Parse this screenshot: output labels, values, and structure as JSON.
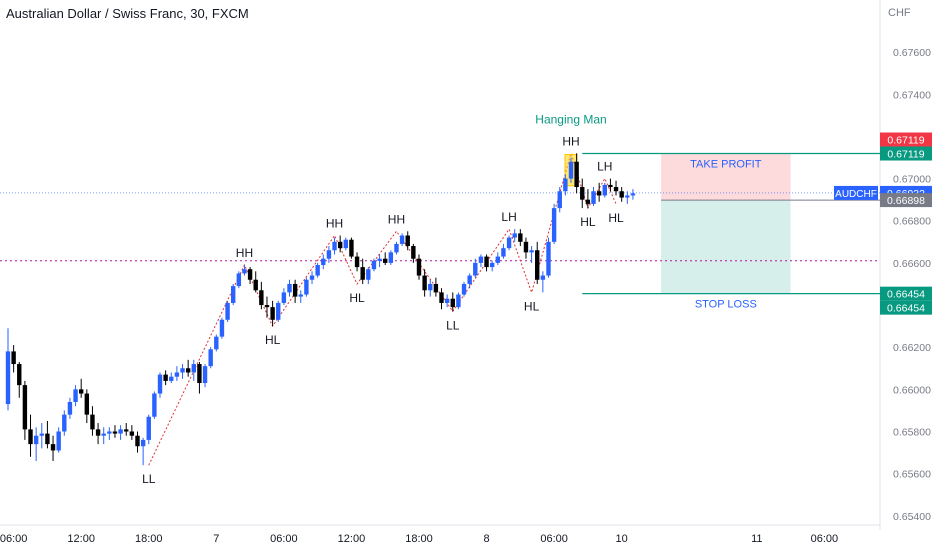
{
  "header": {
    "title": "Australian Dollar / Swiss Franc, 30, FXCM"
  },
  "chart_data": {
    "type": "candlestick",
    "currency_label": "CHF",
    "y_range": [
      0.6538,
      0.678
    ],
    "y_ticks": [
      "0.67600",
      "0.67400",
      "0.67000",
      "0.66800",
      "0.66600",
      "0.66200",
      "0.66000",
      "0.65800",
      "0.65600",
      "0.65400"
    ],
    "x_range_bars": [
      0,
      139
    ],
    "x_ticks": [
      {
        "bar": 1,
        "label": "06:00"
      },
      {
        "bar": 13,
        "label": "12:00"
      },
      {
        "bar": 25,
        "label": "18:00"
      },
      {
        "bar": 37,
        "label": "7"
      },
      {
        "bar": 49,
        "label": "06:00"
      },
      {
        "bar": 61,
        "label": "12:00"
      },
      {
        "bar": 73,
        "label": "18:00"
      },
      {
        "bar": 85,
        "label": "8"
      },
      {
        "bar": 97,
        "label": "06:00"
      },
      {
        "bar": 109,
        "label": "10"
      },
      {
        "bar": 133,
        "label": "11"
      },
      {
        "bar": 145,
        "label": "06:00"
      }
    ],
    "colors": {
      "up": "#2962ff",
      "down": "#000000",
      "swing": "#e03131",
      "annot_green": "#089981"
    },
    "ohlc": [
      [
        0.6593,
        0.6629,
        0.659,
        0.6618
      ],
      [
        0.6618,
        0.6621,
        0.6608,
        0.6612
      ],
      [
        0.6612,
        0.6613,
        0.6596,
        0.6602
      ],
      [
        0.6602,
        0.6604,
        0.6576,
        0.6581
      ],
      [
        0.6581,
        0.6588,
        0.6568,
        0.6574
      ],
      [
        0.6574,
        0.6582,
        0.6566,
        0.6578
      ],
      [
        0.6578,
        0.6584,
        0.6572,
        0.6579
      ],
      [
        0.6579,
        0.6585,
        0.6572,
        0.6574
      ],
      [
        0.6574,
        0.6578,
        0.6566,
        0.6571
      ],
      [
        0.6571,
        0.6582,
        0.657,
        0.658
      ],
      [
        0.658,
        0.659,
        0.6578,
        0.6588
      ],
      [
        0.6588,
        0.6596,
        0.6586,
        0.6594
      ],
      [
        0.6594,
        0.6602,
        0.6592,
        0.66
      ],
      [
        0.66,
        0.6605,
        0.6596,
        0.6598
      ],
      [
        0.6598,
        0.66,
        0.6584,
        0.6588
      ],
      [
        0.6588,
        0.6592,
        0.6578,
        0.6581
      ],
      [
        0.6581,
        0.6584,
        0.6574,
        0.6578
      ],
      [
        0.6578,
        0.6582,
        0.6574,
        0.6579
      ],
      [
        0.6579,
        0.6582,
        0.6576,
        0.658
      ],
      [
        0.658,
        0.6583,
        0.6577,
        0.6579
      ],
      [
        0.6579,
        0.6583,
        0.6576,
        0.6581
      ],
      [
        0.6581,
        0.6584,
        0.6578,
        0.658
      ],
      [
        0.658,
        0.6583,
        0.6576,
        0.6578
      ],
      [
        0.6578,
        0.658,
        0.657,
        0.6573
      ],
      [
        0.6573,
        0.6577,
        0.6564,
        0.6576
      ],
      [
        0.6576,
        0.6588,
        0.6574,
        0.6587
      ],
      [
        0.6587,
        0.6599,
        0.6586,
        0.6598
      ],
      [
        0.6598,
        0.6608,
        0.6596,
        0.6607
      ],
      [
        0.6607,
        0.6609,
        0.6602,
        0.6604
      ],
      [
        0.6604,
        0.6608,
        0.6603,
        0.6606
      ],
      [
        0.6606,
        0.6611,
        0.6604,
        0.6608
      ],
      [
        0.6608,
        0.6612,
        0.6605,
        0.661
      ],
      [
        0.661,
        0.6614,
        0.6606,
        0.6608
      ],
      [
        0.6608,
        0.6614,
        0.6604,
        0.6612
      ],
      [
        0.6612,
        0.6613,
        0.6598,
        0.6603
      ],
      [
        0.6603,
        0.6612,
        0.6601,
        0.6611
      ],
      [
        0.6611,
        0.662,
        0.661,
        0.6619
      ],
      [
        0.6619,
        0.6626,
        0.6618,
        0.6625
      ],
      [
        0.6625,
        0.6634,
        0.6624,
        0.6633
      ],
      [
        0.6633,
        0.6642,
        0.6632,
        0.6641
      ],
      [
        0.6641,
        0.665,
        0.664,
        0.6649
      ],
      [
        0.6649,
        0.6656,
        0.6648,
        0.6655
      ],
      [
        0.6655,
        0.6659,
        0.6654,
        0.6657
      ],
      [
        0.6657,
        0.6658,
        0.665,
        0.6652
      ],
      [
        0.6652,
        0.6656,
        0.6646,
        0.6647
      ],
      [
        0.6647,
        0.6651,
        0.6638,
        0.664
      ],
      [
        0.664,
        0.6644,
        0.6634,
        0.6639
      ],
      [
        0.6639,
        0.6642,
        0.663,
        0.6633
      ],
      [
        0.6633,
        0.6642,
        0.6632,
        0.6641
      ],
      [
        0.6641,
        0.6648,
        0.664,
        0.6646
      ],
      [
        0.6646,
        0.6652,
        0.6644,
        0.665
      ],
      [
        0.665,
        0.6652,
        0.6641,
        0.6644
      ],
      [
        0.6644,
        0.6647,
        0.6641,
        0.6645
      ],
      [
        0.6645,
        0.6653,
        0.6644,
        0.6652
      ],
      [
        0.6652,
        0.6656,
        0.665,
        0.6654
      ],
      [
        0.6654,
        0.666,
        0.6653,
        0.6659
      ],
      [
        0.6659,
        0.6664,
        0.6657,
        0.6662
      ],
      [
        0.6662,
        0.6668,
        0.666,
        0.6666
      ],
      [
        0.6666,
        0.6672,
        0.6664,
        0.667
      ],
      [
        0.667,
        0.6673,
        0.6665,
        0.6667
      ],
      [
        0.6667,
        0.6672,
        0.6666,
        0.6671
      ],
      [
        0.6671,
        0.6672,
        0.6662,
        0.6663
      ],
      [
        0.6663,
        0.6665,
        0.6656,
        0.6658
      ],
      [
        0.6658,
        0.6662,
        0.665,
        0.6652
      ],
      [
        0.6652,
        0.6658,
        0.665,
        0.6657
      ],
      [
        0.6657,
        0.6662,
        0.6656,
        0.6661
      ],
      [
        0.6661,
        0.6664,
        0.6658,
        0.6662
      ],
      [
        0.6662,
        0.6665,
        0.6659,
        0.666
      ],
      [
        0.666,
        0.6666,
        0.6659,
        0.6665
      ],
      [
        0.6665,
        0.667,
        0.6664,
        0.6669
      ],
      [
        0.6669,
        0.6674,
        0.6668,
        0.6673
      ],
      [
        0.6673,
        0.6675,
        0.6666,
        0.6668
      ],
      [
        0.6668,
        0.6669,
        0.666,
        0.6662
      ],
      [
        0.6662,
        0.6664,
        0.6652,
        0.6654
      ],
      [
        0.6654,
        0.6657,
        0.6644,
        0.6647
      ],
      [
        0.6647,
        0.6652,
        0.6644,
        0.665
      ],
      [
        0.665,
        0.6653,
        0.6644,
        0.6646
      ],
      [
        0.6646,
        0.6648,
        0.6638,
        0.6641
      ],
      [
        0.6641,
        0.6645,
        0.6639,
        0.6643
      ],
      [
        0.6643,
        0.6646,
        0.6637,
        0.6639
      ],
      [
        0.6639,
        0.6646,
        0.6638,
        0.6645
      ],
      [
        0.6645,
        0.6651,
        0.6644,
        0.665
      ],
      [
        0.665,
        0.6655,
        0.6648,
        0.6654
      ],
      [
        0.6654,
        0.6662,
        0.6653,
        0.666
      ],
      [
        0.666,
        0.6664,
        0.6658,
        0.6663
      ],
      [
        0.6663,
        0.6664,
        0.6656,
        0.6658
      ],
      [
        0.6658,
        0.6661,
        0.6656,
        0.666
      ],
      [
        0.666,
        0.6665,
        0.6659,
        0.6663
      ],
      [
        0.6663,
        0.6669,
        0.6662,
        0.6667
      ],
      [
        0.6667,
        0.6673,
        0.6666,
        0.6672
      ],
      [
        0.6672,
        0.6676,
        0.667,
        0.6674
      ],
      [
        0.6674,
        0.6676,
        0.6668,
        0.667
      ],
      [
        0.667,
        0.6672,
        0.6662,
        0.6665
      ],
      [
        0.6665,
        0.6668,
        0.666,
        0.6666
      ],
      [
        0.6666,
        0.667,
        0.665,
        0.6652
      ],
      [
        0.6652,
        0.6656,
        0.6646,
        0.6654
      ],
      [
        0.6654,
        0.6672,
        0.6653,
        0.667
      ],
      [
        0.667,
        0.6688,
        0.6669,
        0.6686
      ],
      [
        0.6686,
        0.6696,
        0.6684,
        0.6694
      ],
      [
        0.6694,
        0.6702,
        0.6692,
        0.67
      ],
      [
        0.67,
        0.671,
        0.6698,
        0.6708
      ],
      [
        0.6708,
        0.6712,
        0.6693,
        0.6696
      ],
      [
        0.6696,
        0.67,
        0.6686,
        0.669
      ],
      [
        0.669,
        0.6695,
        0.6686,
        0.6688
      ],
      [
        0.6688,
        0.6696,
        0.6687,
        0.6694
      ],
      [
        0.6694,
        0.6698,
        0.6689,
        0.6692
      ],
      [
        0.6692,
        0.6698,
        0.6691,
        0.6697
      ],
      [
        0.6697,
        0.67,
        0.6694,
        0.6696
      ],
      [
        0.6696,
        0.6699,
        0.6692,
        0.6694
      ],
      [
        0.6694,
        0.6696,
        0.6689,
        0.6691
      ],
      [
        0.6691,
        0.6694,
        0.6688,
        0.6692
      ],
      [
        0.6692,
        0.6695,
        0.669,
        0.6693
      ]
    ],
    "levels": {
      "resistance": 0.6661,
      "current_price": 0.66932,
      "take_profit": 0.67119,
      "entry": 0.66898,
      "stop_loss": 0.66454
    },
    "price_badges": [
      {
        "text": "0.67119",
        "price": 0.67119,
        "color": "#f23645",
        "offset": -1
      },
      {
        "text": "0.67119",
        "price": 0.67119,
        "color": "#089981",
        "offset": 0
      },
      {
        "text": "0.66932",
        "price": 0.66932,
        "color": "#2962ff",
        "offset": 0,
        "tag": "AUDCHF"
      },
      {
        "text": "0.66898",
        "price": 0.66898,
        "color": "#787b86",
        "offset": 0
      },
      {
        "text": "0.66454",
        "price": 0.66454,
        "color": "#089981",
        "offset": 0
      },
      {
        "text": "0.66454",
        "price": 0.66454,
        "color": "#089981",
        "offset": 1
      }
    ],
    "position_box": {
      "start_bar": 116,
      "end_bar": 139,
      "take_profit_label": "TAKE PROFIT",
      "stop_loss_label": "STOP LOSS"
    },
    "level_lines": {
      "start_bar": 102,
      "end_bar": 139
    },
    "swing_points": [
      {
        "bar": 25,
        "price": 0.6564,
        "label": "LL",
        "pos": "below"
      },
      {
        "bar": 42,
        "price": 0.6659,
        "label": "HH",
        "pos": "above"
      },
      {
        "bar": 47,
        "price": 0.663,
        "label": "HL",
        "pos": "below"
      },
      {
        "bar": 58,
        "price": 0.6673,
        "label": "HH",
        "pos": "above"
      },
      {
        "bar": 62,
        "price": 0.665,
        "label": "HL",
        "pos": "below"
      },
      {
        "bar": 69,
        "price": 0.6675,
        "label": "HH",
        "pos": "above"
      },
      {
        "bar": 79,
        "price": 0.6637,
        "label": "LL",
        "pos": "below"
      },
      {
        "bar": 89,
        "price": 0.6676,
        "label": "LH",
        "pos": "above"
      },
      {
        "bar": 93,
        "price": 0.6646,
        "label": "LH_low",
        "pos": "below"
      },
      {
        "bar": 100,
        "price": 0.6712,
        "label": "HH",
        "pos": "above"
      },
      {
        "bar": 103,
        "price": 0.6686,
        "label": "HL",
        "pos": "below"
      },
      {
        "bar": 106,
        "price": 0.67,
        "label": "LH",
        "pos": "above"
      },
      {
        "bar": 108,
        "price": 0.6688,
        "label": "HL",
        "pos": "below"
      }
    ],
    "swing_label_overrides": {
      "LH_low": "HL"
    },
    "pattern_highlight": {
      "bar": 100,
      "label": "Hanging Man"
    }
  }
}
